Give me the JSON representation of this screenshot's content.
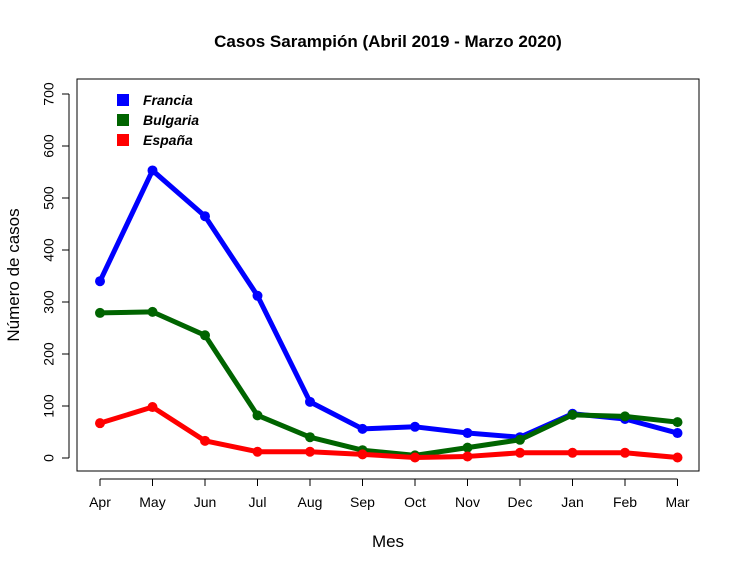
{
  "chart_data": {
    "type": "line",
    "title": "Casos Sarampión (Abril 2019 - Marzo 2020)",
    "xlabel": "Mes",
    "ylabel": "Número de casos",
    "categories": [
      "Apr",
      "May",
      "Jun",
      "Jul",
      "Aug",
      "Sep",
      "Oct",
      "Nov",
      "Dec",
      "Jan",
      "Feb",
      "Mar"
    ],
    "ylim": [
      0,
      700
    ],
    "yticks": [
      0,
      100,
      200,
      300,
      400,
      500,
      600,
      700
    ],
    "grid": false,
    "legend_position": "top-left",
    "series": [
      {
        "name": "Francia",
        "color": "#0000FF",
        "values": [
          340,
          553,
          465,
          312,
          108,
          56,
          60,
          48,
          40,
          85,
          75,
          48
        ]
      },
      {
        "name": "Bulgaria",
        "color": "#006400",
        "values": [
          279,
          281,
          236,
          82,
          40,
          15,
          5,
          20,
          35,
          83,
          80,
          69
        ]
      },
      {
        "name": "España",
        "color": "#FF0000",
        "values": [
          67,
          98,
          33,
          12,
          12,
          7,
          1,
          3,
          10,
          10,
          10,
          1
        ]
      }
    ]
  }
}
